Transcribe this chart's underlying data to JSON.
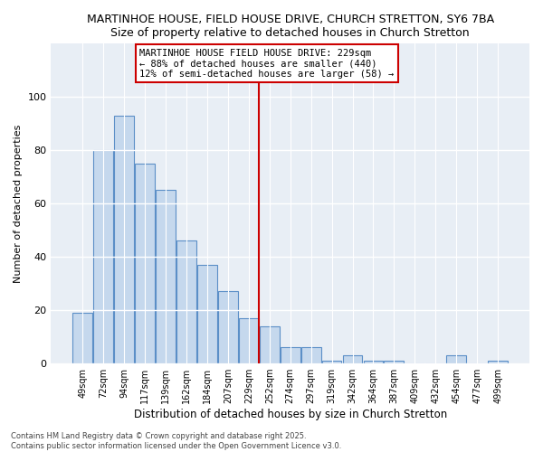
{
  "title": "MARTINHOE HOUSE, FIELD HOUSE DRIVE, CHURCH STRETTON, SY6 7BA",
  "subtitle": "Size of property relative to detached houses in Church Stretton",
  "xlabel": "Distribution of detached houses by size in Church Stretton",
  "ylabel": "Number of detached properties",
  "categories": [
    "49sqm",
    "72sqm",
    "94sqm",
    "117sqm",
    "139sqm",
    "162sqm",
    "184sqm",
    "207sqm",
    "229sqm",
    "252sqm",
    "274sqm",
    "297sqm",
    "319sqm",
    "342sqm",
    "364sqm",
    "387sqm",
    "409sqm",
    "432sqm",
    "454sqm",
    "477sqm",
    "499sqm"
  ],
  "values": [
    19,
    80,
    93,
    75,
    65,
    46,
    37,
    27,
    17,
    14,
    6,
    6,
    1,
    3,
    1,
    1,
    0,
    0,
    3,
    0,
    1
  ],
  "highlight_index": 8,
  "highlight_color": "#cc0000",
  "bar_color": "#c5d8ed",
  "bar_edge_color": "#5b8fc7",
  "ylim": [
    0,
    120
  ],
  "yticks": [
    0,
    20,
    40,
    60,
    80,
    100
  ],
  "annotation_title": "MARTINHOE HOUSE FIELD HOUSE DRIVE: 229sqm",
  "annotation_line1": "← 88% of detached houses are smaller (440)",
  "annotation_line2": "12% of semi-detached houses are larger (58) →",
  "footer_line1": "Contains HM Land Registry data © Crown copyright and database right 2025.",
  "footer_line2": "Contains public sector information licensed under the Open Government Licence v3.0.",
  "background_color": "#ffffff",
  "plot_bg_color": "#e8eef5"
}
